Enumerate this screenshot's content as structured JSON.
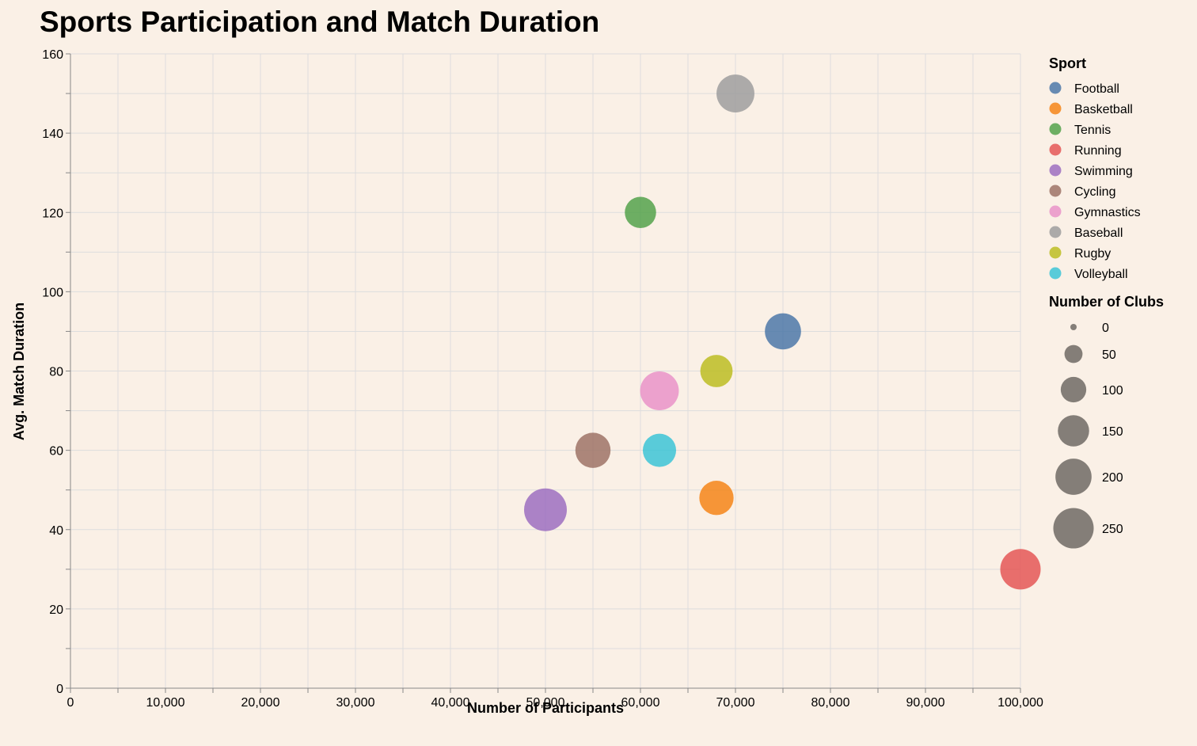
{
  "chart_data": {
    "type": "scatter",
    "title": "Sports Participation and Match Duration",
    "xlabel": "Number of Participants",
    "ylabel": "Avg. Match Duration",
    "xlim": [
      0,
      100000
    ],
    "ylim": [
      0,
      160
    ],
    "x_ticks": [
      0,
      10000,
      20000,
      30000,
      40000,
      50000,
      60000,
      70000,
      80000,
      90000,
      100000
    ],
    "x_tick_labels": [
      "0",
      "10,000",
      "20,000",
      "30,000",
      "40,000",
      "50,000",
      "60,000",
      "70,000",
      "80,000",
      "90,000",
      "100,000"
    ],
    "y_ticks": [
      0,
      20,
      40,
      60,
      80,
      100,
      120,
      140,
      160
    ],
    "y_tick_labels": [
      "0",
      "20",
      "40",
      "60",
      "80",
      "100",
      "120",
      "140",
      "160"
    ],
    "grid": true,
    "legend_placement": "right",
    "color_legend_title": "Sport",
    "size_legend_title": "Number of Clubs",
    "size_legend_values": [
      0,
      50,
      100,
      150,
      200,
      250
    ],
    "size_legend_labels": [
      "0",
      "50",
      "100",
      "150",
      "200",
      "250"
    ],
    "points": [
      {
        "sport": "Football",
        "participants": 75000,
        "duration": 90,
        "clubs": 200,
        "color": "#4C78A8"
      },
      {
        "sport": "Basketball",
        "participants": 68000,
        "duration": 48,
        "clubs": 180,
        "color": "#F58518"
      },
      {
        "sport": "Tennis",
        "participants": 60000,
        "duration": 120,
        "clubs": 150,
        "color": "#54A24B"
      },
      {
        "sport": "Running",
        "participants": 100000,
        "duration": 30,
        "clubs": 250,
        "color": "#E45756"
      },
      {
        "sport": "Swimming",
        "participants": 50000,
        "duration": 45,
        "clubs": 280,
        "color": "#9C6FC0"
      },
      {
        "sport": "Cycling",
        "participants": 55000,
        "duration": 60,
        "clubs": 190,
        "color": "#9D7366"
      },
      {
        "sport": "Gymnastics",
        "participants": 62000,
        "duration": 75,
        "clubs": 230,
        "color": "#E993C8"
      },
      {
        "sport": "Baseball",
        "participants": 70000,
        "duration": 150,
        "clubs": 220,
        "color": "#9D9D9D"
      },
      {
        "sport": "Rugby",
        "participants": 68000,
        "duration": 80,
        "clubs": 160,
        "color": "#BCBD22"
      },
      {
        "sport": "Volleyball",
        "participants": 62000,
        "duration": 60,
        "clubs": 170,
        "color": "#3CC4D6"
      }
    ]
  }
}
